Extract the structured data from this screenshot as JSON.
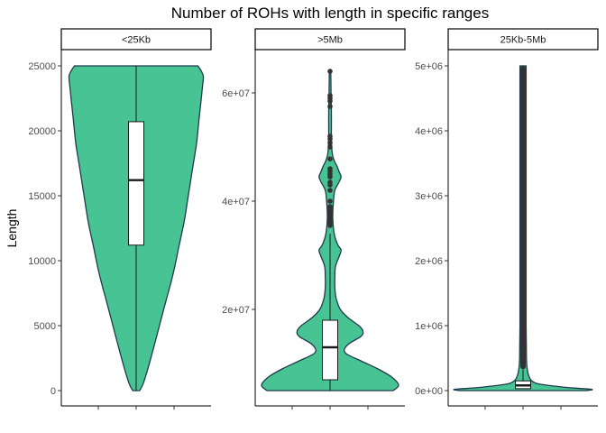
{
  "chart_data": {
    "type": "violin",
    "title": "Number of ROHs with length in specific ranges",
    "ylabel": "Length",
    "xlabel": "",
    "colors": {
      "fill": "#48c394",
      "outline": "#1f3b4d",
      "box": "#ffffff",
      "outlier": "#333333"
    },
    "facets": [
      {
        "label": "<25Kb",
        "ylim": [
          0,
          25000
        ],
        "yticks": [
          0,
          5000,
          10000,
          15000,
          20000,
          25000
        ],
        "ytick_labels": [
          "0",
          "5000",
          "10000",
          "15000",
          "20000",
          "25000"
        ],
        "box": {
          "q1": 11200,
          "median": 16200,
          "q3": 20700,
          "whisker_low": 0,
          "whisker_high": 25000
        },
        "violin": {
          "y": [
            0,
            500,
            1500,
            3000,
            5000,
            7000,
            9000,
            11000,
            13000,
            15000,
            17000,
            19000,
            21000,
            22500,
            23500,
            24200,
            24600,
            25000
          ],
          "width": [
            0.05,
            0.1,
            0.16,
            0.24,
            0.34,
            0.44,
            0.54,
            0.62,
            0.7,
            0.76,
            0.82,
            0.88,
            0.92,
            0.95,
            0.97,
            0.98,
            0.95,
            0.9
          ]
        },
        "outliers": []
      },
      {
        "label": ">5Mb",
        "ylim": [
          5000000,
          65000000
        ],
        "yticks": [
          20000000,
          40000000,
          60000000
        ],
        "ytick_labels": [
          "2e+07",
          "4e+07",
          "6e+07"
        ],
        "box": {
          "q1": 7000000,
          "median": 13000000,
          "q3": 18000000,
          "whisker_low": 5000000,
          "whisker_high": 34000000
        },
        "violin": {
          "y": [
            5000000,
            6000000,
            7500000,
            9000000,
            10500000,
            12000000,
            13500000,
            15000000,
            16000000,
            17000000,
            18500000,
            20000000,
            22000000,
            24000000,
            26000000,
            28000000,
            30000000,
            31000000,
            32000000,
            34000000,
            37000000,
            40000000,
            42000000,
            43500000,
            44500000,
            45500000,
            46500000,
            47500000,
            49000000,
            52000000,
            56000000,
            60000000,
            64000000
          ],
          "width": [
            0.92,
            1.0,
            0.9,
            0.7,
            0.45,
            0.22,
            0.26,
            0.45,
            0.48,
            0.42,
            0.26,
            0.15,
            0.09,
            0.07,
            0.07,
            0.08,
            0.14,
            0.16,
            0.11,
            0.06,
            0.04,
            0.05,
            0.07,
            0.13,
            0.16,
            0.13,
            0.1,
            0.06,
            0.03,
            0.02,
            0.02,
            0.015,
            0.01
          ]
        },
        "outliers": [
          64000000,
          59500000,
          59000000,
          58500000,
          57500000,
          52000000,
          51500000,
          50800000,
          50000000,
          47800000,
          46000000,
          45500000,
          45000000,
          44500000,
          43500000,
          43000000,
          42000000,
          40000000,
          39000000,
          38500000,
          38000000,
          37500000,
          37000000,
          36500000,
          36000000,
          35500000
        ]
      },
      {
        "label": "25Kb-5Mb",
        "ylim": [
          0,
          5000000
        ],
        "yticks": [
          0,
          1000000,
          2000000,
          3000000,
          4000000,
          5000000
        ],
        "ytick_labels": [
          "0e+00",
          "1e+06",
          "2e+06",
          "3e+06",
          "4e+06",
          "5e+06"
        ],
        "box": {
          "q1": 30000,
          "median": 80000,
          "q3": 150000,
          "whisker_low": 25000,
          "whisker_high": 330000
        },
        "violin": {
          "y": [
            0,
            20000,
            50000,
            100000,
            160000,
            240000,
            340000,
            500000,
            1000000,
            2000000,
            5000000
          ],
          "width": [
            0.92,
            1.0,
            0.62,
            0.24,
            0.12,
            0.08,
            0.06,
            0.05,
            0.045,
            0.045,
            0.045
          ]
        },
        "outliers": [],
        "outlier_band": [
          330000,
          5000000
        ]
      }
    ]
  }
}
